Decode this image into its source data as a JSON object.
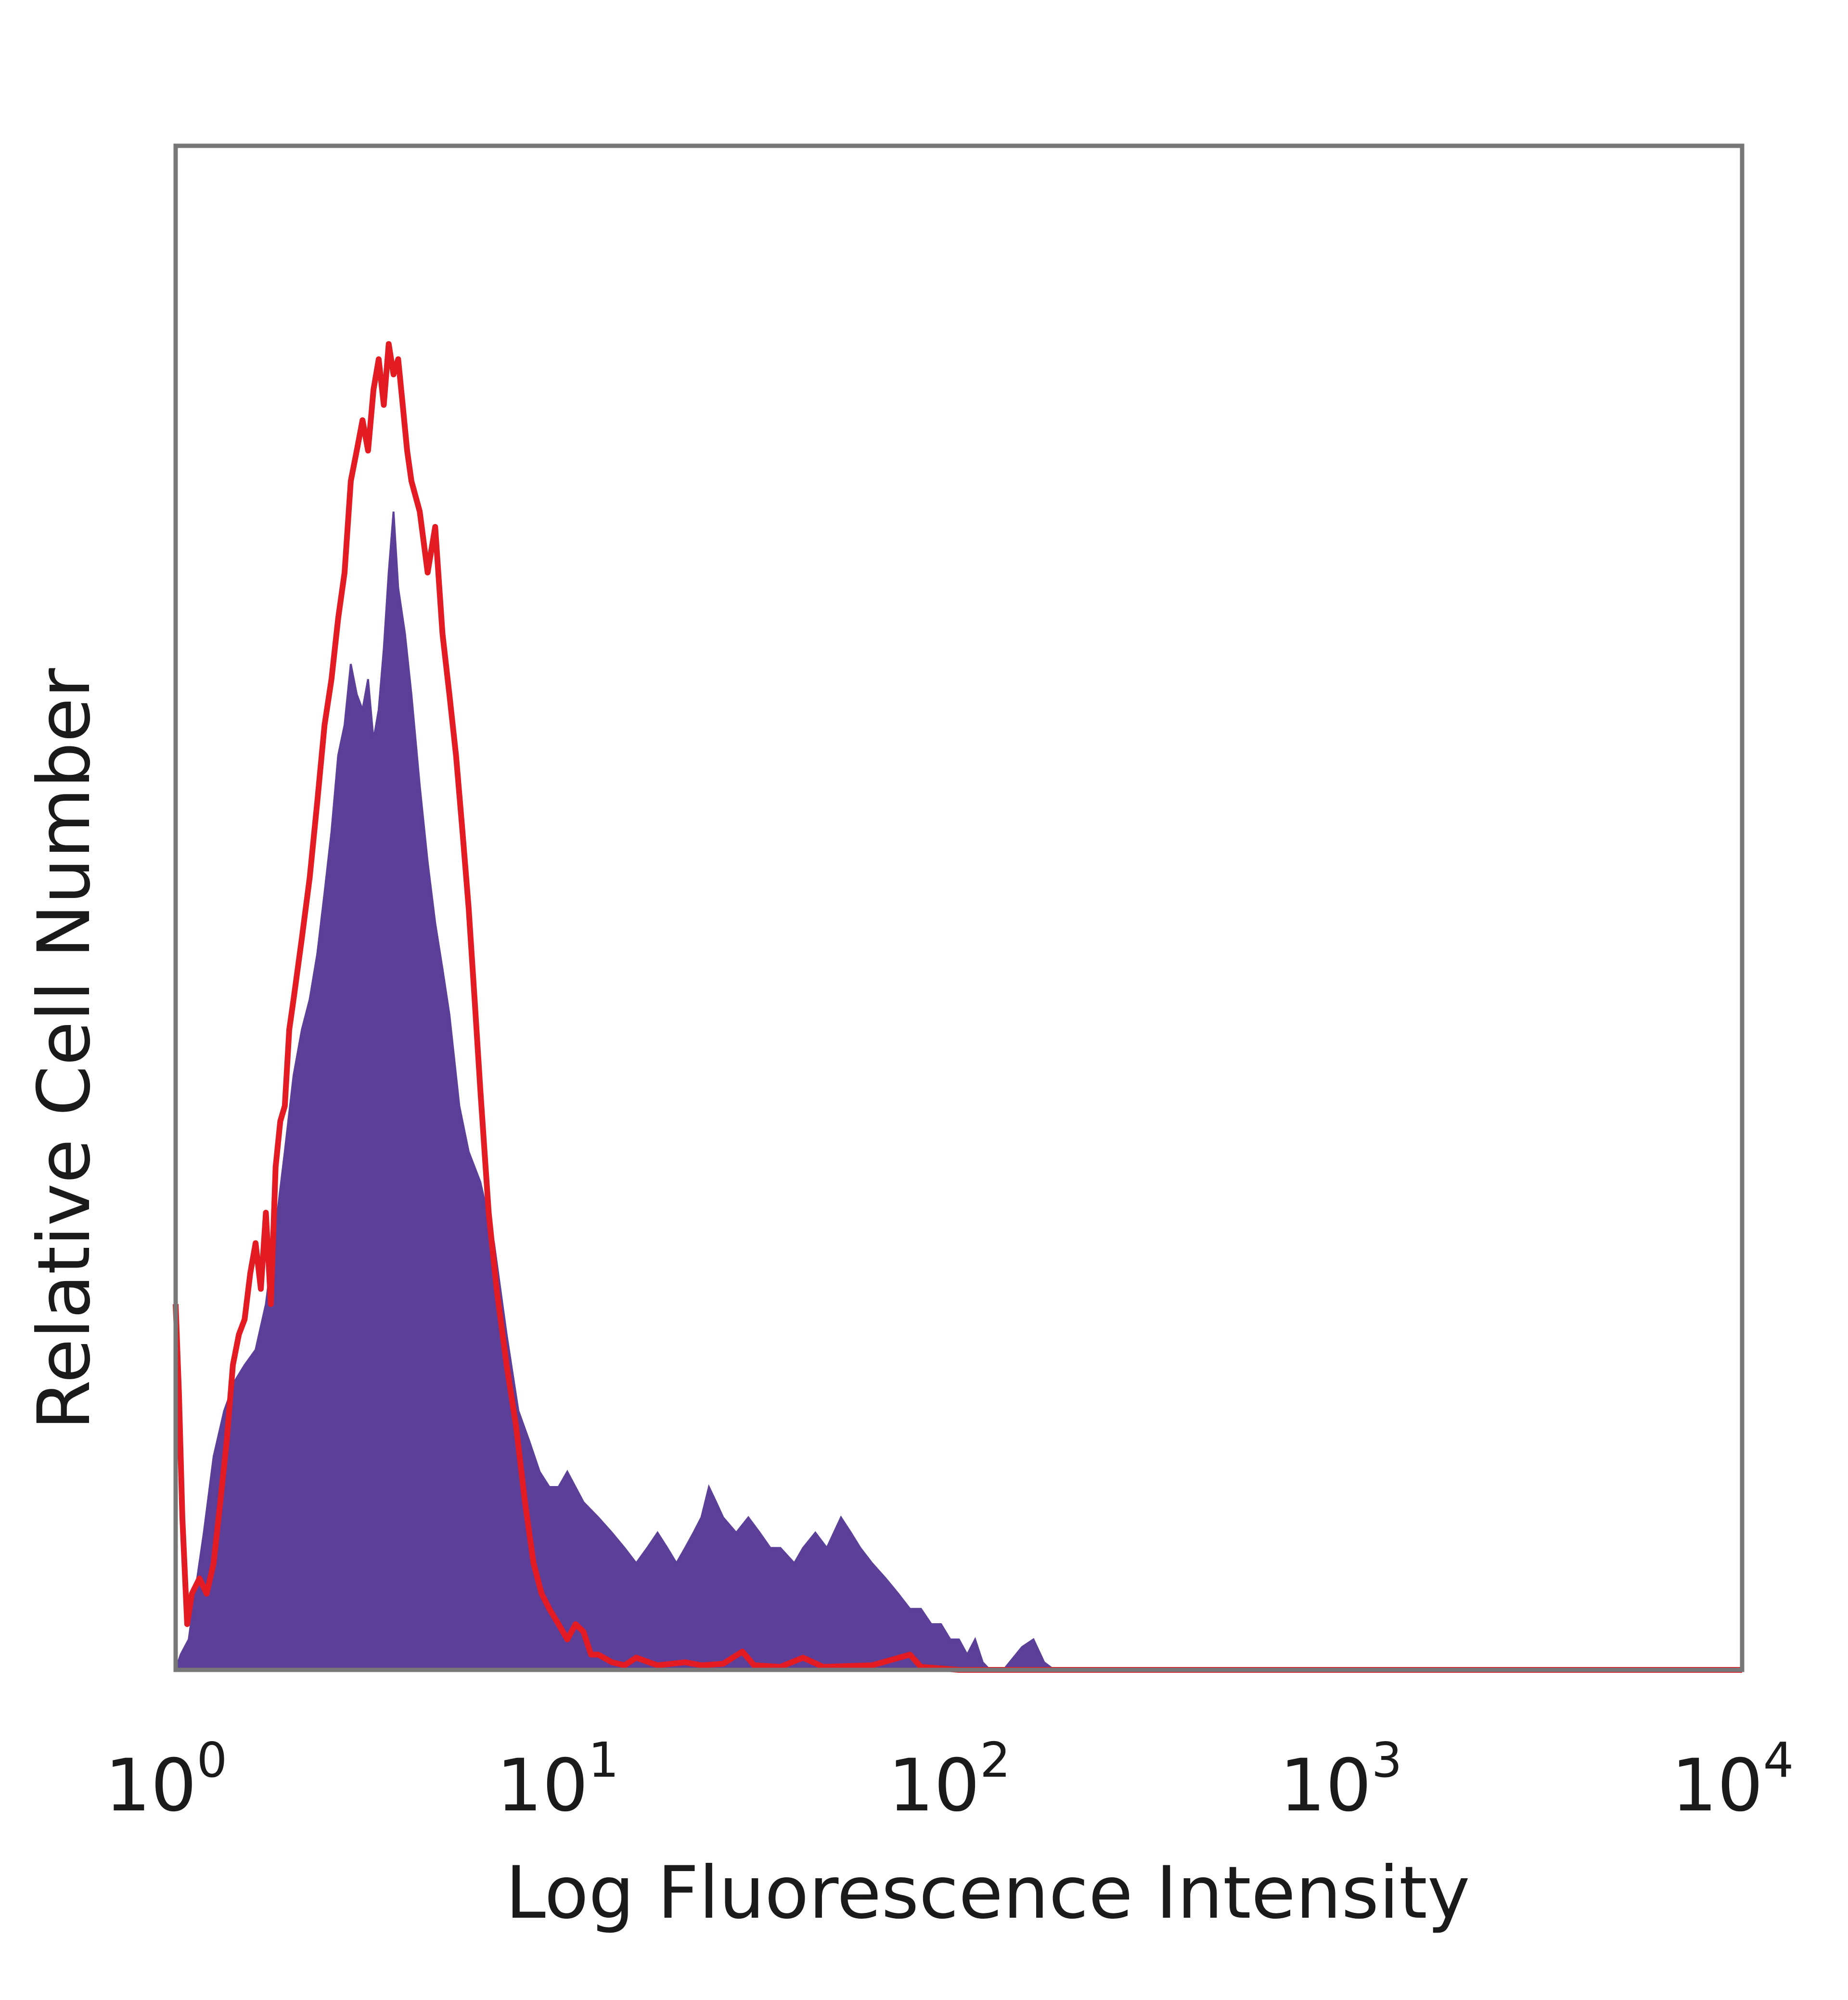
{
  "chart_data": {
    "type": "area",
    "title": "",
    "xlabel": "Log Fluorescence Intensity",
    "ylabel": "Relative Cell Number",
    "x_scale": "log",
    "xlim": [
      1,
      10000
    ],
    "ylim": [
      0,
      100
    ],
    "x_tick_labels": [
      {
        "base": "10",
        "exp": "0"
      },
      {
        "base": "10",
        "exp": "1"
      },
      {
        "base": "10",
        "exp": "2"
      },
      {
        "base": "10",
        "exp": "3"
      },
      {
        "base": "10",
        "exp": "4"
      }
    ],
    "y_ticks_shown": false,
    "grid": false,
    "legend": "none",
    "series": [
      {
        "color": "#5b3f98",
        "style": "filled",
        "points": [
          [
            1.0,
            0
          ],
          [
            1.03,
            1
          ],
          [
            1.08,
            2
          ],
          [
            1.12,
            5
          ],
          [
            1.18,
            9
          ],
          [
            1.25,
            14
          ],
          [
            1.33,
            17
          ],
          [
            1.42,
            19
          ],
          [
            1.5,
            20
          ],
          [
            1.6,
            21
          ],
          [
            1.7,
            24
          ],
          [
            1.8,
            29
          ],
          [
            1.9,
            34
          ],
          [
            2.0,
            39
          ],
          [
            2.1,
            42
          ],
          [
            2.2,
            44
          ],
          [
            2.3,
            47
          ],
          [
            2.4,
            51
          ],
          [
            2.5,
            55
          ],
          [
            2.6,
            60
          ],
          [
            2.7,
            62
          ],
          [
            2.8,
            66
          ],
          [
            2.9,
            64
          ],
          [
            3.0,
            63
          ],
          [
            3.1,
            65
          ],
          [
            3.2,
            61
          ],
          [
            3.3,
            63
          ],
          [
            3.4,
            67
          ],
          [
            3.5,
            72
          ],
          [
            3.6,
            76
          ],
          [
            3.7,
            71
          ],
          [
            3.85,
            68
          ],
          [
            4.0,
            64
          ],
          [
            4.2,
            58
          ],
          [
            4.4,
            53
          ],
          [
            4.6,
            49
          ],
          [
            4.8,
            46
          ],
          [
            5.0,
            43
          ],
          [
            5.3,
            37
          ],
          [
            5.6,
            34
          ],
          [
            6.0,
            32
          ],
          [
            6.5,
            28
          ],
          [
            7.0,
            22
          ],
          [
            7.5,
            17
          ],
          [
            8.0,
            15
          ],
          [
            8.5,
            13
          ],
          [
            9.0,
            12
          ],
          [
            9.5,
            12
          ],
          [
            10.0,
            13
          ],
          [
            11.0,
            11
          ],
          [
            12.0,
            10
          ],
          [
            13.0,
            9
          ],
          [
            14.0,
            8
          ],
          [
            15.0,
            7
          ],
          [
            16.0,
            8
          ],
          [
            17.0,
            9
          ],
          [
            18.0,
            8
          ],
          [
            19.0,
            7
          ],
          [
            20.0,
            8
          ],
          [
            21.0,
            9
          ],
          [
            22.0,
            10
          ],
          [
            23.0,
            12
          ],
          [
            24.0,
            11
          ],
          [
            25.0,
            10
          ],
          [
            27.0,
            9
          ],
          [
            29.0,
            10
          ],
          [
            31.0,
            9
          ],
          [
            33.0,
            8
          ],
          [
            35.0,
            8
          ],
          [
            38.0,
            7
          ],
          [
            40.0,
            8
          ],
          [
            43.0,
            9
          ],
          [
            46.0,
            8
          ],
          [
            50.0,
            10
          ],
          [
            53.0,
            9
          ],
          [
            56.0,
            8
          ],
          [
            60.0,
            7
          ],
          [
            65.0,
            6
          ],
          [
            70.0,
            5
          ],
          [
            75.0,
            4
          ],
          [
            80.0,
            4
          ],
          [
            85.0,
            3
          ],
          [
            90.0,
            3
          ],
          [
            95.0,
            2
          ],
          [
            100.0,
            2
          ],
          [
            105.0,
            1
          ],
          [
            110.0,
            2
          ],
          [
            115.0,
            0.5
          ],
          [
            120.0,
            0
          ],
          [
            130.0,
            0
          ],
          [
            145.0,
            1.5
          ],
          [
            155.0,
            2
          ],
          [
            165.0,
            0.5
          ],
          [
            175.0,
            0
          ],
          [
            10000,
            0
          ]
        ]
      },
      {
        "color": "#e31b23",
        "style": "line",
        "points": [
          [
            1.0,
            24
          ],
          [
            1.02,
            18
          ],
          [
            1.04,
            10
          ],
          [
            1.07,
            3
          ],
          [
            1.1,
            5
          ],
          [
            1.15,
            6
          ],
          [
            1.2,
            5
          ],
          [
            1.25,
            7
          ],
          [
            1.3,
            11
          ],
          [
            1.35,
            15
          ],
          [
            1.4,
            20
          ],
          [
            1.45,
            22
          ],
          [
            1.5,
            23
          ],
          [
            1.55,
            26
          ],
          [
            1.6,
            28
          ],
          [
            1.65,
            25
          ],
          [
            1.7,
            30
          ],
          [
            1.75,
            24
          ],
          [
            1.8,
            33
          ],
          [
            1.85,
            36
          ],
          [
            1.9,
            37
          ],
          [
            1.95,
            42
          ],
          [
            2.0,
            44
          ],
          [
            2.1,
            48
          ],
          [
            2.2,
            52
          ],
          [
            2.3,
            57
          ],
          [
            2.4,
            62
          ],
          [
            2.5,
            65
          ],
          [
            2.6,
            69
          ],
          [
            2.7,
            72
          ],
          [
            2.8,
            78
          ],
          [
            2.9,
            80
          ],
          [
            3.0,
            82
          ],
          [
            3.1,
            80
          ],
          [
            3.2,
            84
          ],
          [
            3.3,
            86
          ],
          [
            3.4,
            83
          ],
          [
            3.5,
            87
          ],
          [
            3.6,
            85
          ],
          [
            3.7,
            86
          ],
          [
            3.8,
            83
          ],
          [
            3.9,
            80
          ],
          [
            4.0,
            78
          ],
          [
            4.2,
            76
          ],
          [
            4.4,
            72
          ],
          [
            4.6,
            75
          ],
          [
            4.8,
            68
          ],
          [
            5.0,
            64
          ],
          [
            5.2,
            60
          ],
          [
            5.4,
            55
          ],
          [
            5.6,
            50
          ],
          [
            5.8,
            44
          ],
          [
            6.0,
            38
          ],
          [
            6.3,
            30
          ],
          [
            6.6,
            25
          ],
          [
            7.0,
            20
          ],
          [
            7.4,
            16
          ],
          [
            7.8,
            11
          ],
          [
            8.2,
            7
          ],
          [
            8.6,
            5
          ],
          [
            9.0,
            4
          ],
          [
            9.5,
            3
          ],
          [
            10.0,
            2
          ],
          [
            10.5,
            3
          ],
          [
            11.0,
            2.5
          ],
          [
            11.5,
            1
          ],
          [
            12.0,
            1
          ],
          [
            13.0,
            0.5
          ],
          [
            14.0,
            0.3
          ],
          [
            15.0,
            0.8
          ],
          [
            17.0,
            0.3
          ],
          [
            20.0,
            0.5
          ],
          [
            22.0,
            0.3
          ],
          [
            25.0,
            0.4
          ],
          [
            28.0,
            1.2
          ],
          [
            30.0,
            0.3
          ],
          [
            35.0,
            0.2
          ],
          [
            40.0,
            0.8
          ],
          [
            45.0,
            0.2
          ],
          [
            60.0,
            0.3
          ],
          [
            75.0,
            1.0
          ],
          [
            80.0,
            0.2
          ],
          [
            100.0,
            0
          ],
          [
            10000,
            0
          ]
        ]
      }
    ]
  }
}
